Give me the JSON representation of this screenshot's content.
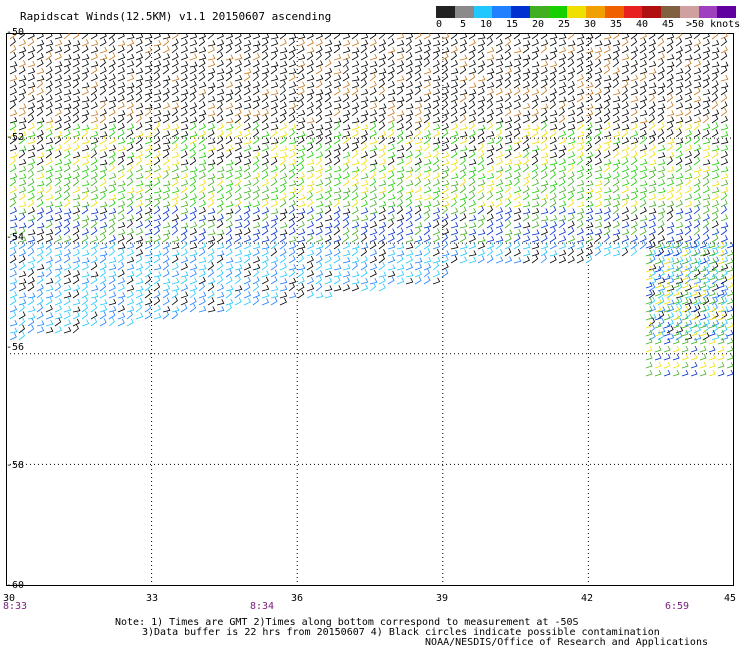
{
  "title": "Rapidscat Winds(12.5KM) v1.1 20150607 ascending",
  "legend": {
    "colors": [
      "#222222",
      "#8a8a8a",
      "#20c8ff",
      "#2080ff",
      "#0030d0",
      "#40b020",
      "#18d000",
      "#f0e000",
      "#f0a000",
      "#f06000",
      "#e82020",
      "#b01010",
      "#806040",
      "#d0a0a0",
      "#a040c0",
      "#6000a0"
    ],
    "labels": [
      "0",
      "5",
      "10",
      "15",
      "20",
      "25",
      "30",
      "35",
      "40",
      "45",
      ">50 knots"
    ]
  },
  "map": {
    "lat_labels": [
      "-50",
      "-52",
      "-54",
      "-56",
      "-58",
      "-60"
    ],
    "lon_labels": [
      "30",
      "33",
      "36",
      "39",
      "42",
      "45"
    ],
    "times": [
      "8:33",
      "8:34",
      "6:59"
    ]
  },
  "notes": {
    "line1": "Note: 1) Times are GMT 2)Times along bottom correspond to measurement at -50S",
    "line2": "3)Data buffer is 22 hrs from 20150607 4) Black circles indicate possible contamination",
    "credit": "NOAA/NESDIS/Office of Research and Applications"
  }
}
